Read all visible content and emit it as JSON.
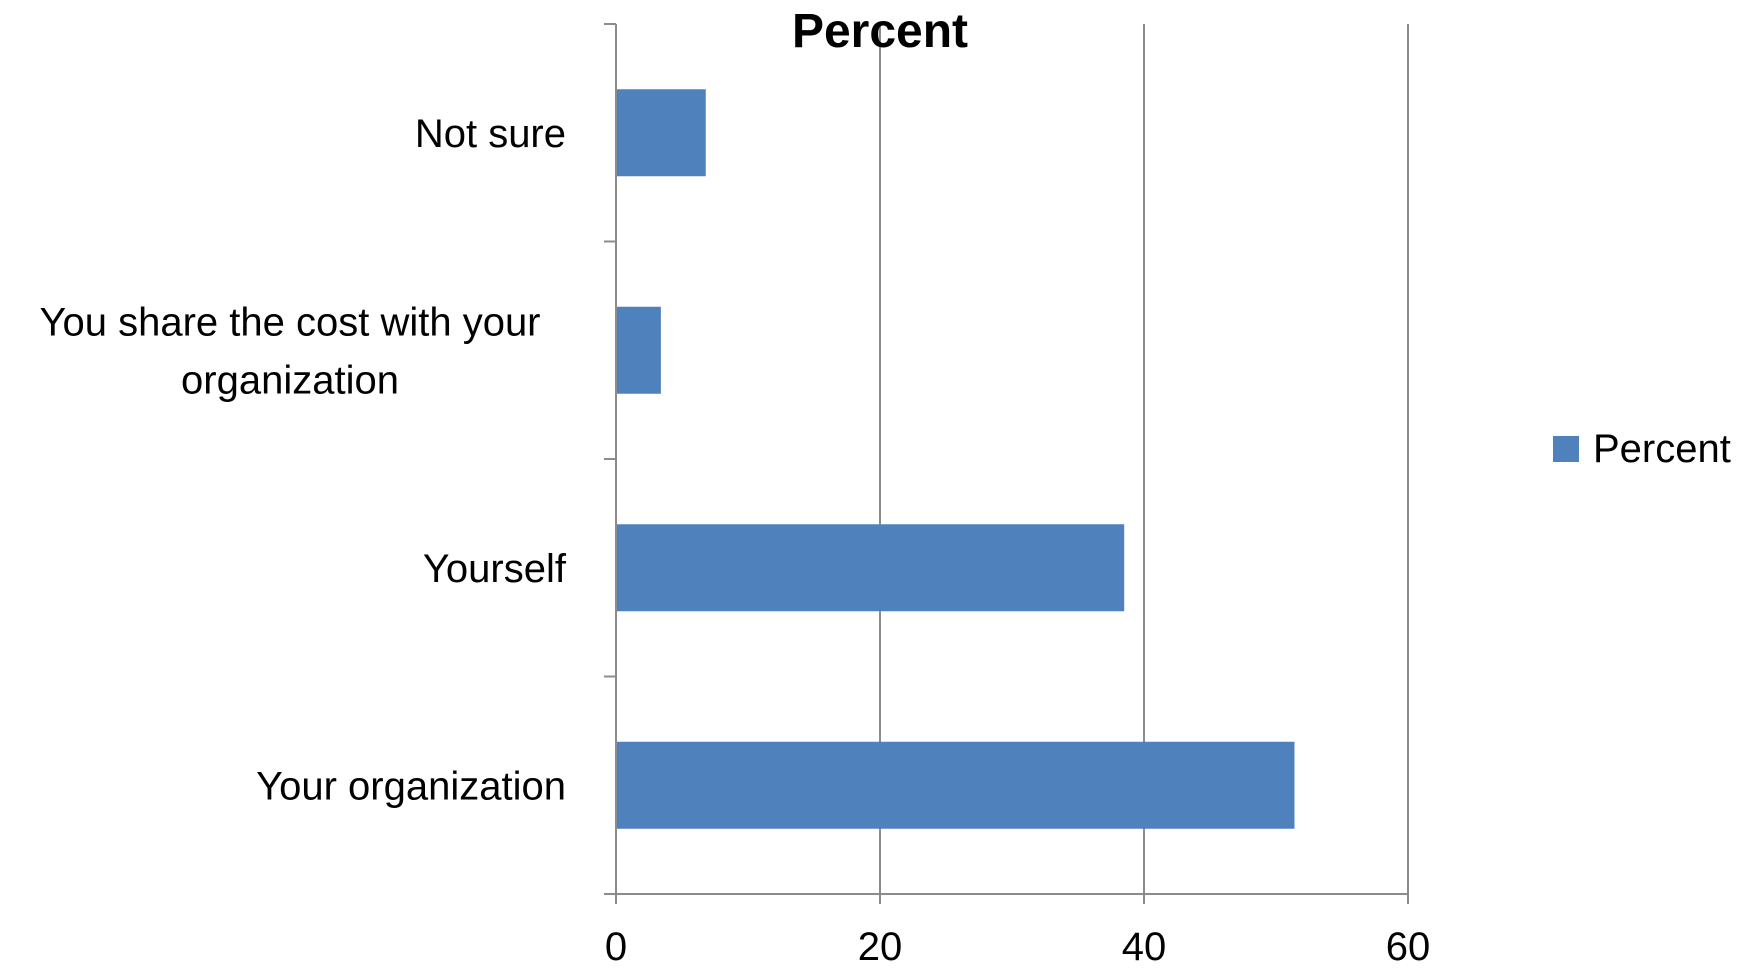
{
  "chart_data": {
    "type": "bar",
    "orientation": "horizontal",
    "title": "Percent",
    "categories": [
      "Not sure",
      "You share the cost with your organization",
      "Yourself",
      "Your organization"
    ],
    "category_lines": [
      [
        "Not sure"
      ],
      [
        "You share the cost with your",
        "organization"
      ],
      [
        "Yourself"
      ],
      [
        "Your organization"
      ]
    ],
    "series": [
      {
        "name": "Percent",
        "values": [
          6.8,
          3.4,
          38.5,
          51.4
        ],
        "color": "#4f81bd"
      }
    ],
    "xlim": [
      0,
      60
    ],
    "xticks": [
      0,
      20,
      40,
      60
    ],
    "grid": "vertical",
    "legend": {
      "position": "right",
      "label": "Percent"
    },
    "xlabel": "",
    "ylabel": ""
  }
}
